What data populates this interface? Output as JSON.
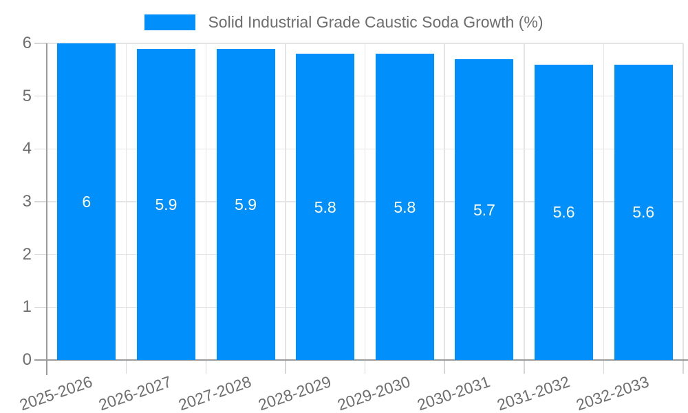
{
  "legend": {
    "position": "top"
  },
  "chart_data": {
    "type": "bar",
    "title": "Solid Industrial Grade Caustic Soda Growth (%)",
    "categories": [
      "2025-2026",
      "2026-2027",
      "2027-2028",
      "2028-2029",
      "2029-2030",
      "2030-2031",
      "2031-2032",
      "2032-2033"
    ],
    "series": [
      {
        "name": "Solid Industrial Grade Caustic Soda Growth (%)",
        "values": [
          6,
          5.9,
          5.9,
          5.8,
          5.8,
          5.7,
          5.6,
          5.6
        ],
        "color": "#008FFB"
      }
    ],
    "data_labels": [
      "6",
      "5.9",
      "5.9",
      "5.8",
      "5.8",
      "5.7",
      "5.6",
      "5.6"
    ],
    "xlabel": "",
    "ylabel": "",
    "ylim": [
      0,
      6
    ],
    "yticks": [
      0,
      1,
      2,
      3,
      4,
      5,
      6
    ],
    "grid": true,
    "legend_position": "top",
    "colors": {
      "background": "#ffffff",
      "grid": "#e4e4e4",
      "tick": "#d6d6d6",
      "axis_line": "#9c9c9c",
      "axis_text": "#6e6e6e",
      "legend_text": "#6e6e6e",
      "data_label_text": "#ffffff"
    }
  }
}
